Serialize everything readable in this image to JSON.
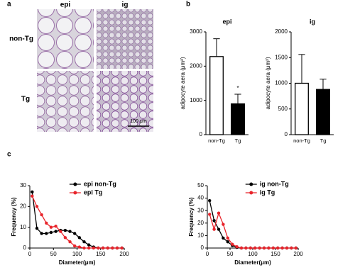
{
  "panel_labels": [
    "a",
    "b",
    "c"
  ],
  "panel_a": {
    "columns": [
      "epi",
      "ig"
    ],
    "rows": [
      "non-Tg",
      "Tg"
    ],
    "scale_bar": "100 μm"
  },
  "chart_data": [
    {
      "type": "bar",
      "title": "epi",
      "y_label": "adipocyte aera (μm²)",
      "categories": [
        "non-Tg",
        "Tg"
      ],
      "values": [
        2280,
        900
      ],
      "errors": [
        520,
        280
      ],
      "colors": [
        "#ffffff",
        "#000000"
      ],
      "annotation": "*",
      "ylim": [
        0,
        3000
      ],
      "yticks": [
        0,
        1000,
        2000,
        3000
      ]
    },
    {
      "type": "bar",
      "title": "ig",
      "y_label": "adipocyte aera (μm²)",
      "categories": [
        "non-Tg",
        "Tg"
      ],
      "values": [
        1000,
        880
      ],
      "errors": [
        560,
        200
      ],
      "colors": [
        "#ffffff",
        "#000000"
      ],
      "ylim": [
        0,
        2000
      ],
      "yticks": [
        0,
        500,
        1000,
        1500,
        2000
      ]
    },
    {
      "type": "line",
      "x_label": "Diameter(μm)",
      "y_label": "Frequency (%)",
      "x": [
        5,
        15,
        25,
        35,
        45,
        55,
        65,
        75,
        85,
        95,
        105,
        115,
        125,
        135,
        145,
        155,
        165,
        175,
        185,
        195
      ],
      "series": [
        {
          "name": "epi non-Tg",
          "color": "#000000",
          "values": [
            27,
            9.5,
            7,
            7,
            7.5,
            8,
            8.5,
            8.5,
            8,
            7,
            5,
            3,
            1.5,
            0.5,
            0,
            0,
            0,
            0,
            0,
            0
          ]
        },
        {
          "name": "epi Tg",
          "color": "#e8242b",
          "values": [
            25,
            20,
            16,
            12,
            10,
            10.5,
            8,
            5,
            3,
            1,
            0.5,
            0,
            0,
            0,
            0,
            0,
            0,
            0,
            0,
            0
          ]
        }
      ],
      "xlim": [
        0,
        200
      ],
      "xticks": [
        0,
        50,
        100,
        150,
        200
      ],
      "ylim": [
        0,
        30
      ],
      "yticks": [
        0,
        10,
        20,
        30
      ]
    },
    {
      "type": "line",
      "x_label": "Diameter(μm)",
      "y_label": "Frequency (%)",
      "x": [
        5,
        15,
        25,
        35,
        45,
        55,
        65,
        75,
        85,
        95,
        105,
        115,
        125,
        135,
        145,
        155,
        165,
        175,
        185,
        195
      ],
      "series": [
        {
          "name": "ig non-Tg",
          "color": "#000000",
          "values": [
            38,
            22,
            15,
            8,
            5,
            2,
            0.5,
            0,
            0,
            0,
            0,
            0,
            0,
            0,
            0,
            0,
            0,
            0,
            0,
            0
          ]
        },
        {
          "name": "ig Tg",
          "color": "#e8242b",
          "values": [
            27,
            15,
            28,
            19,
            8,
            3,
            1,
            0,
            0,
            0,
            0,
            0,
            0,
            0,
            0,
            0,
            0,
            0,
            0,
            0
          ]
        }
      ],
      "xlim": [
        0,
        200
      ],
      "xticks": [
        0,
        50,
        100,
        150,
        200
      ],
      "ylim": [
        0,
        50
      ],
      "yticks": [
        0,
        10,
        20,
        30,
        40,
        50
      ]
    }
  ]
}
